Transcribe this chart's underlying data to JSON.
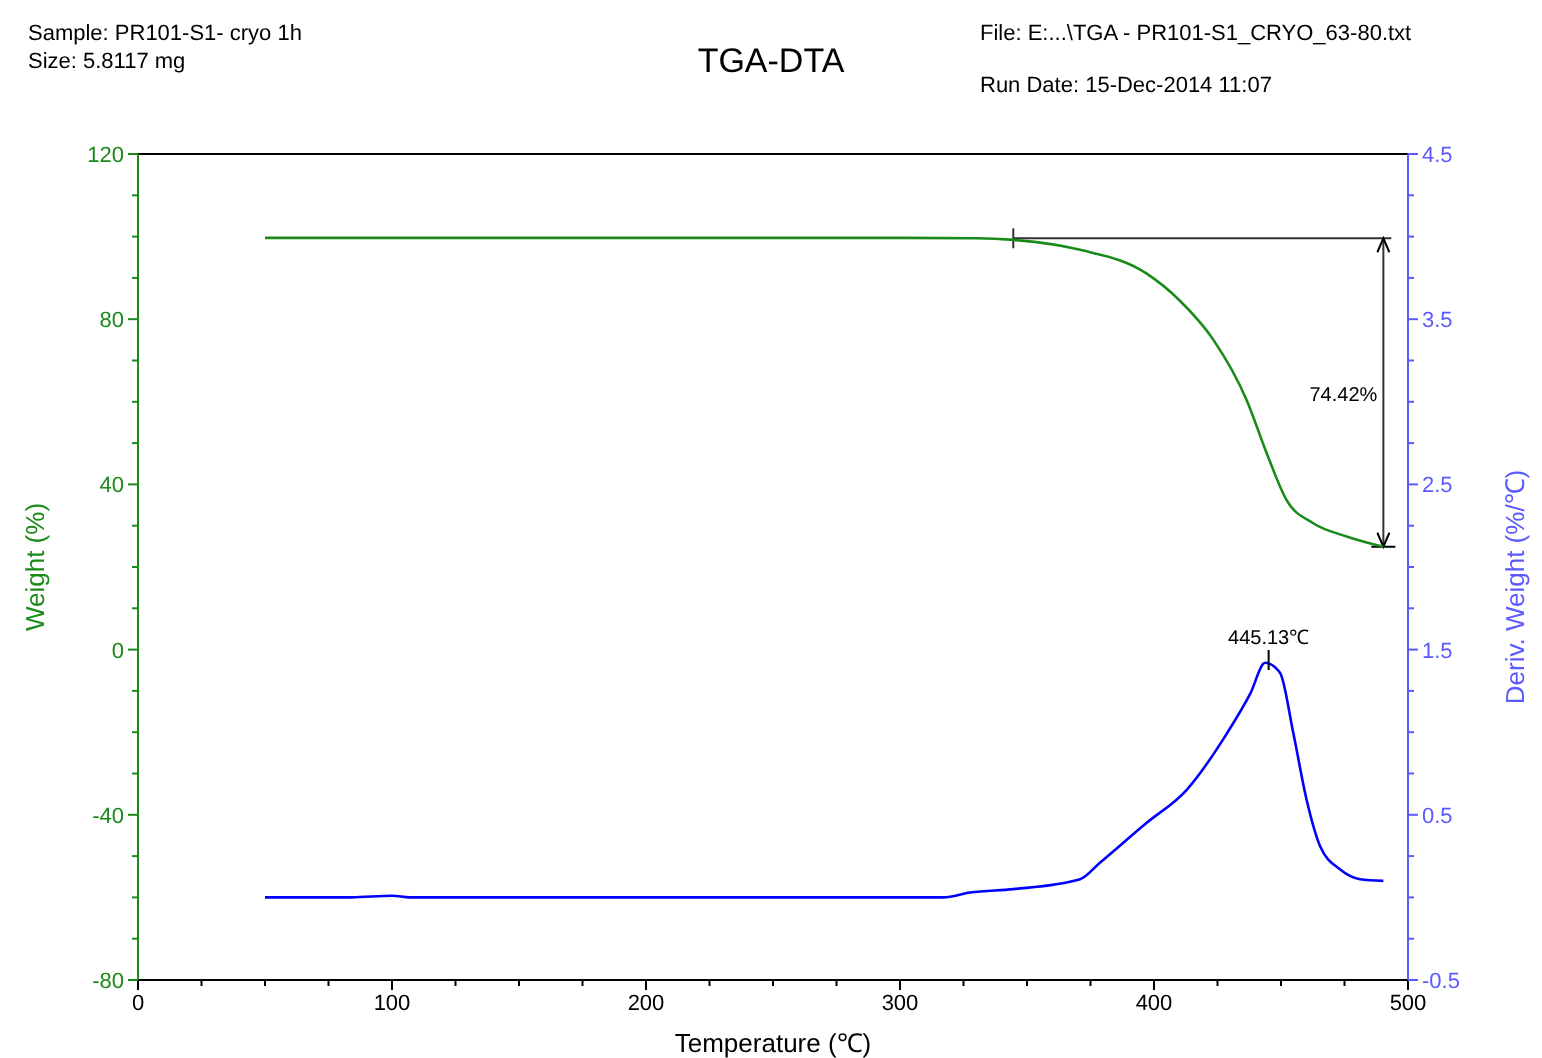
{
  "chart_data": {
    "type": "line",
    "title": "TGA-DTA",
    "xlabel": "Temperature (℃)",
    "ylabel": "Weight (%)",
    "y2label": "Deriv. Weight (%/℃)",
    "annotations": [
      "Sample: PR101-S1- cryo 1h",
      "Size:  5.8117 mg",
      "File: E:...\\TGA - PR101-S1_CRYO_63-80.txt",
      "Run Date: 15-Dec-2014 11:07",
      "74.42%",
      {
        "text": "445.13℃",
        "x": 445.13,
        "y": -3
      }
    ],
    "series": [
      {
        "color": "#1a8a1a",
        "x": [
          50,
          100,
          200,
          300,
          330,
          344.6,
          370.9,
          397,
          410,
          423.4,
          436.5,
          444.4,
          452.2,
          462.7,
          475.8,
          490.3
        ],
        "values": [
          99.7,
          99.7,
          99.7,
          99.7,
          99.6,
          99.2,
          96.8,
          91.1,
          84.6,
          75,
          60.4,
          47.5,
          36.2,
          30.6,
          27.4,
          24.9
        ]
      },
      {
        "color": "#0000ff",
        "axis": "y2",
        "x": [
          50,
          84,
          100,
          107,
          200,
          317,
          327.6,
          344.6,
          370.9,
          378.7,
          397,
          412.8,
          428.6,
          437.8,
          443.8,
          449.6,
          454.9,
          460.1,
          465.4,
          473.2,
          481.1,
          490.3
        ],
        "values": [
          0,
          0,
          0.01,
          0,
          0,
          0,
          0.03,
          0.05,
          0.11,
          0.21,
          0.45,
          0.65,
          0.99,
          1.23,
          1.42,
          1.36,
          0.99,
          0.59,
          0.31,
          0.17,
          0.11,
          0.1
        ]
      }
    ],
    "xlim": [
      0,
      500
    ],
    "xticks": [
      0,
      {
        "value": 25,
        "label": null
      },
      {
        "value": 50,
        "label": null
      },
      {
        "value": 75,
        "label": null
      },
      100,
      {
        "value": 125,
        "label": null
      },
      {
        "value": 150,
        "label": null
      },
      {
        "value": 175,
        "label": null
      },
      200,
      {
        "value": 225,
        "label": null
      },
      {
        "value": 250,
        "label": null
      },
      {
        "value": 275,
        "label": null
      },
      300,
      {
        "value": 325,
        "label": null
      },
      {
        "value": 350,
        "label": null
      },
      {
        "value": 375,
        "label": null
      },
      400,
      {
        "value": 425,
        "label": null
      },
      {
        "value": 450,
        "label": null
      },
      {
        "value": 475,
        "label": null
      },
      500
    ],
    "ylim": [
      -80,
      120
    ],
    "yticks": [
      -80,
      {
        "value": -70,
        "label": null
      },
      {
        "value": -60,
        "label": null
      },
      {
        "value": -50,
        "label": null
      },
      -40,
      {
        "value": -30,
        "label": null
      },
      {
        "value": -20,
        "label": null
      },
      {
        "value": -10,
        "label": null
      },
      0,
      {
        "value": 10,
        "label": null
      },
      {
        "value": 20,
        "label": null
      },
      {
        "value": 30,
        "label": null
      },
      40,
      {
        "value": 50,
        "label": null
      },
      {
        "value": 60,
        "label": null
      },
      {
        "value": 70,
        "label": null
      },
      80,
      {
        "value": 90,
        "label": null
      },
      {
        "value": 100,
        "label": null
      },
      {
        "value": 110,
        "label": null
      },
      120
    ],
    "y2lim": [
      -0.5,
      4.5
    ],
    "y2ticks": [
      -0.5,
      {
        "value": -0.25,
        "label": null
      },
      {
        "value": 0,
        "label": null
      },
      {
        "value": 0.25,
        "label": null
      },
      0.5,
      {
        "value": 0.75,
        "label": null
      },
      {
        "value": 1,
        "label": null
      },
      {
        "value": 1.25,
        "label": null
      },
      1.5,
      {
        "value": 1.75,
        "label": null
      },
      {
        "value": 2,
        "label": null
      },
      {
        "value": 2.25,
        "label": null
      },
      2.5,
      {
        "value": 2.75,
        "label": null
      },
      {
        "value": 3,
        "label": null
      },
      {
        "value": 3.25,
        "label": null
      },
      3.5,
      {
        "value": 3.75,
        "label": null
      },
      {
        "value": 4,
        "label": null
      },
      {
        "value": 4.25,
        "label": null
      },
      4.5
    ],
    "marker": "none",
    "line_style": "solid"
  }
}
